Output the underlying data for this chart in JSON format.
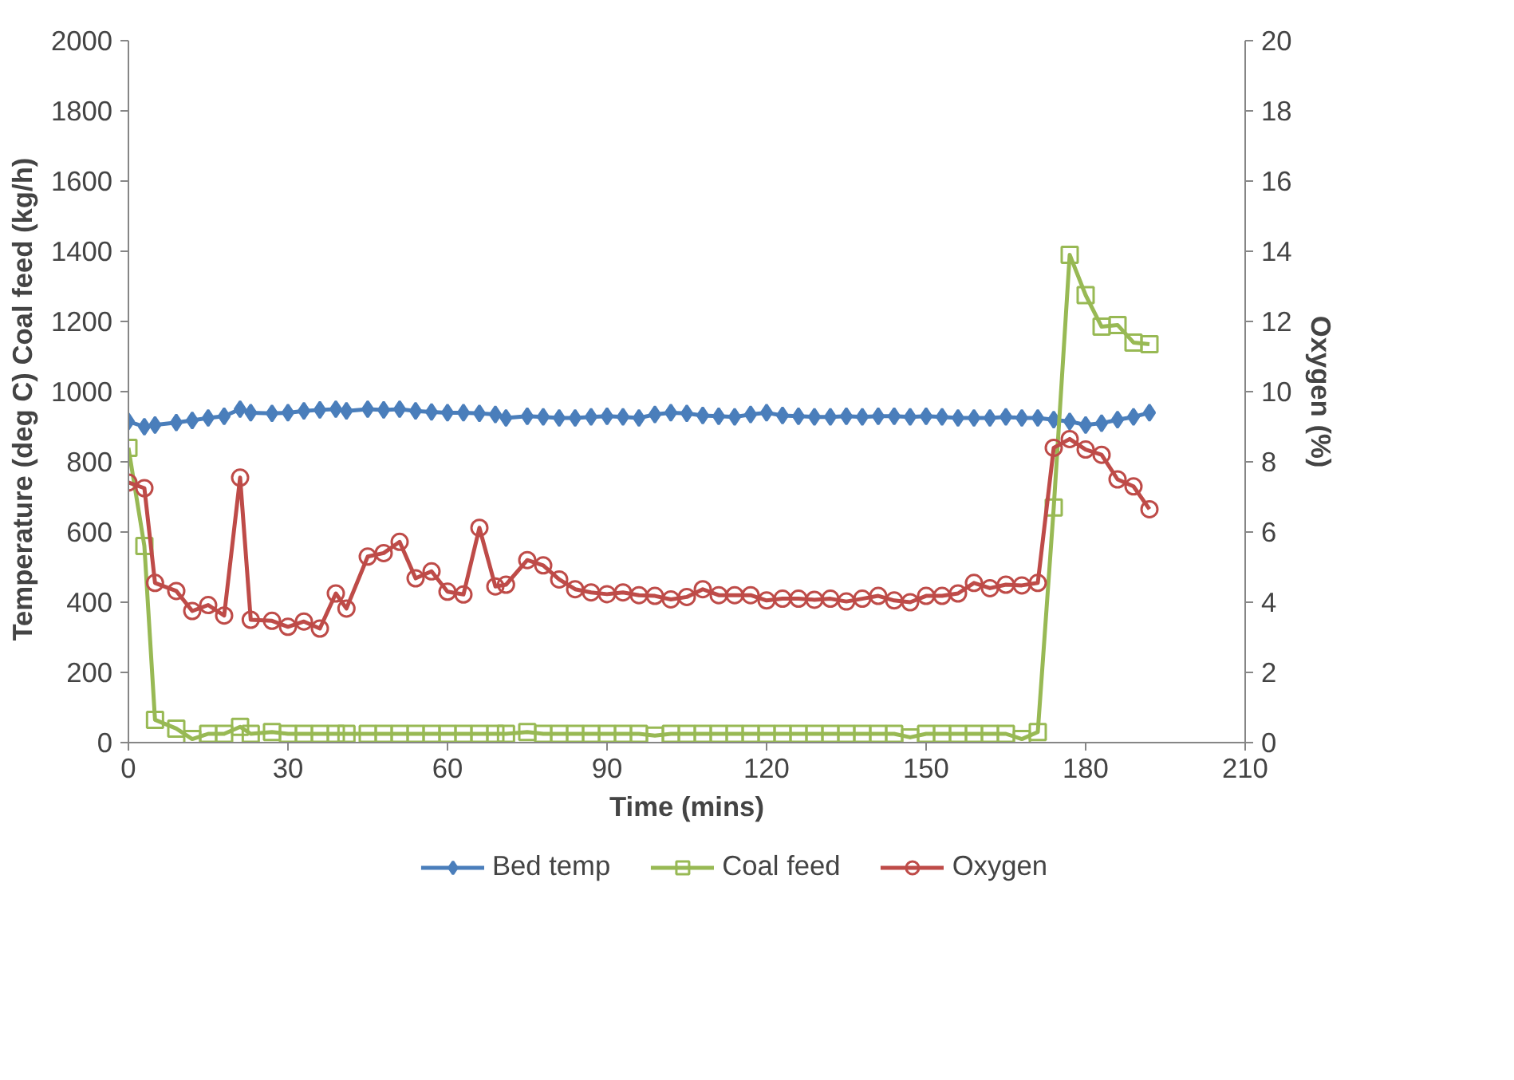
{
  "chart_data": {
    "type": "line",
    "xlabel": "Time (mins)",
    "ylabel": "Temperature (deg C)   Coal feed (kg/h)",
    "y2label": "Oxygen (%)",
    "xlim": [
      0,
      210
    ],
    "xticks": [
      0,
      30,
      60,
      90,
      120,
      150,
      180,
      210
    ],
    "ylim": [
      0,
      2000
    ],
    "yticks": [
      0,
      200,
      400,
      600,
      800,
      1000,
      1200,
      1400,
      1600,
      1800,
      2000
    ],
    "y2lim": [
      0,
      20
    ],
    "y2ticks": [
      0,
      2,
      4,
      6,
      8,
      10,
      12,
      14,
      16,
      18,
      20
    ],
    "grid": false,
    "legend": "bottom",
    "line_style": "solid",
    "x": [
      0,
      3,
      5,
      9,
      12,
      15,
      18,
      21,
      23,
      27,
      30,
      33,
      36,
      39,
      41,
      45,
      48,
      51,
      54,
      57,
      60,
      63,
      66,
      69,
      71,
      75,
      78,
      81,
      84,
      87,
      90,
      93,
      96,
      99,
      102,
      105,
      108,
      111,
      114,
      117,
      120,
      123,
      126,
      129,
      132,
      135,
      138,
      141,
      144,
      147,
      150,
      153,
      156,
      159,
      162,
      165,
      168,
      171,
      174,
      177,
      180,
      183,
      186,
      189,
      192
    ],
    "series": [
      {
        "name": "Bed temp",
        "color": "#4a7ebb",
        "marker": "diamond",
        "values": [
          915,
          900,
          905,
          912,
          918,
          925,
          930,
          950,
          940,
          938,
          940,
          945,
          948,
          950,
          945,
          950,
          948,
          950,
          945,
          942,
          940,
          940,
          938,
          935,
          925,
          930,
          928,
          925,
          925,
          928,
          930,
          928,
          925,
          935,
          940,
          938,
          932,
          930,
          928,
          935,
          940,
          932,
          930,
          928,
          928,
          930,
          928,
          930,
          930,
          928,
          930,
          928,
          925,
          925,
          925,
          928,
          925,
          925,
          920,
          915,
          905,
          910,
          920,
          928,
          940
        ]
      },
      {
        "name": "Coal feed",
        "color": "#98b954",
        "marker": "square",
        "values": [
          840,
          560,
          65,
          40,
          10,
          25,
          25,
          45,
          25,
          30,
          25,
          25,
          25,
          25,
          25,
          25,
          25,
          25,
          25,
          25,
          25,
          25,
          25,
          25,
          25,
          30,
          25,
          25,
          25,
          25,
          25,
          25,
          25,
          20,
          25,
          25,
          25,
          25,
          25,
          25,
          25,
          25,
          25,
          25,
          25,
          25,
          25,
          25,
          25,
          15,
          25,
          25,
          25,
          25,
          25,
          25,
          10,
          30,
          670,
          1390,
          1275,
          1185,
          1190,
          1140,
          1135
        ]
      },
      {
        "name": "Oxygen",
        "color": "#be4b48",
        "marker": "circle",
        "axis": "y2",
        "values": [
          7.41,
          7.25,
          4.55,
          4.32,
          3.75,
          3.92,
          3.62,
          7.55,
          3.5,
          3.47,
          3.3,
          3.45,
          3.25,
          4.25,
          3.82,
          5.3,
          5.4,
          5.72,
          4.68,
          4.88,
          4.3,
          4.22,
          6.12,
          4.45,
          4.5,
          5.2,
          5.05,
          4.65,
          4.37,
          4.28,
          4.23,
          4.28,
          4.2,
          4.18,
          4.08,
          4.15,
          4.37,
          4.2,
          4.2,
          4.2,
          4.05,
          4.1,
          4.1,
          4.07,
          4.1,
          4.02,
          4.1,
          4.18,
          4.05,
          4.0,
          4.18,
          4.18,
          4.25,
          4.55,
          4.4,
          4.5,
          4.48,
          4.55,
          8.4,
          8.65,
          8.35,
          8.2,
          7.5,
          7.3,
          6.65
        ]
      }
    ]
  }
}
